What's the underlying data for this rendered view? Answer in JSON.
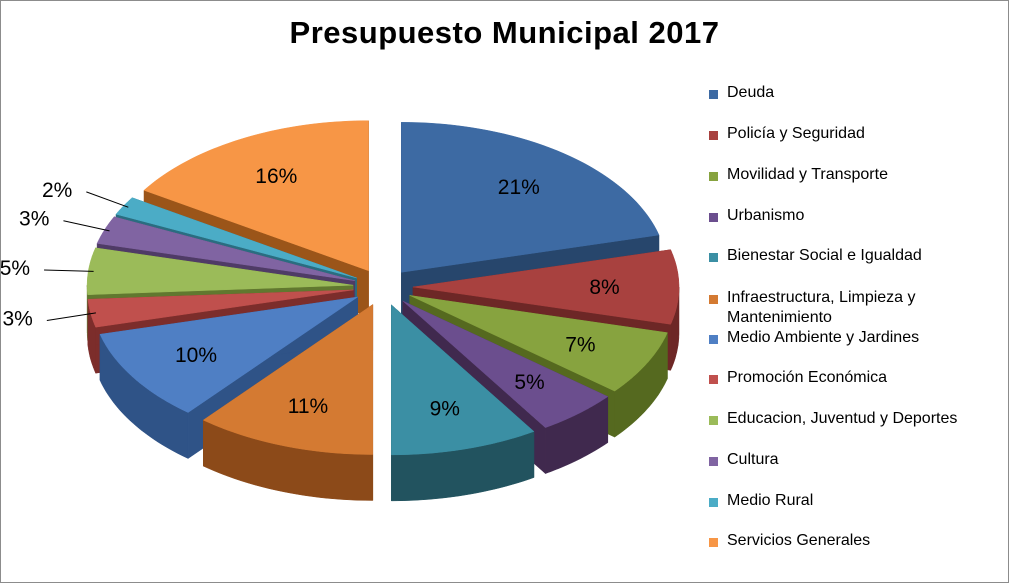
{
  "chart_data": {
    "type": "pie",
    "title": "Presupuesto Municipal 2017",
    "exploded": true,
    "three_d": true,
    "legend_position": "right",
    "slices": [
      {
        "name": "Deuda",
        "value": 21,
        "label": "21%",
        "color": "#3d6aa3",
        "side": "#27466c"
      },
      {
        "name": "Policía y Seguridad",
        "value": 8,
        "label": "8%",
        "color": "#a8413f",
        "side": "#6d2726"
      },
      {
        "name": "Movilidad y Transporte",
        "value": 7,
        "label": "7%",
        "color": "#87a33f",
        "side": "#55691f"
      },
      {
        "name": "Urbanismo",
        "value": 5,
        "label": "5%",
        "color": "#6b4e8e",
        "side": "#40294e"
      },
      {
        "name": "Bienestar Social e Igualdad",
        "value": 9,
        "label": "9%",
        "color": "#3b8fa4",
        "side": "#22535f"
      },
      {
        "name": "Infraestructura, Limpieza y Mantenimiento",
        "value": 11,
        "label": "11%",
        "color": "#d47a32",
        "side": "#8c4a19"
      },
      {
        "name": "Medio Ambiente y Jardines",
        "value": 10,
        "label": "10%",
        "color": "#4f7fc4",
        "side": "#2f5387"
      },
      {
        "name": "Promoción Económica",
        "value": 3,
        "label": "3%",
        "color": "#c0504d",
        "side": "#7c2d2b"
      },
      {
        "name": "Educacion, Juventud y Deportes",
        "value": 5,
        "label": "5%",
        "color": "#9bbb59",
        "side": "#61782f"
      },
      {
        "name": "Cultura",
        "value": 3,
        "label": "3%",
        "color": "#8064a2",
        "side": "#4f3b66"
      },
      {
        "name": "Medio Rural",
        "value": 2,
        "label": "2%",
        "color": "#4bacc6",
        "side": "#2a6d80"
      },
      {
        "name": "Servicios Generales",
        "value": 16,
        "label": "16%",
        "color": "#f79646",
        "side": "#9b5519"
      }
    ]
  }
}
